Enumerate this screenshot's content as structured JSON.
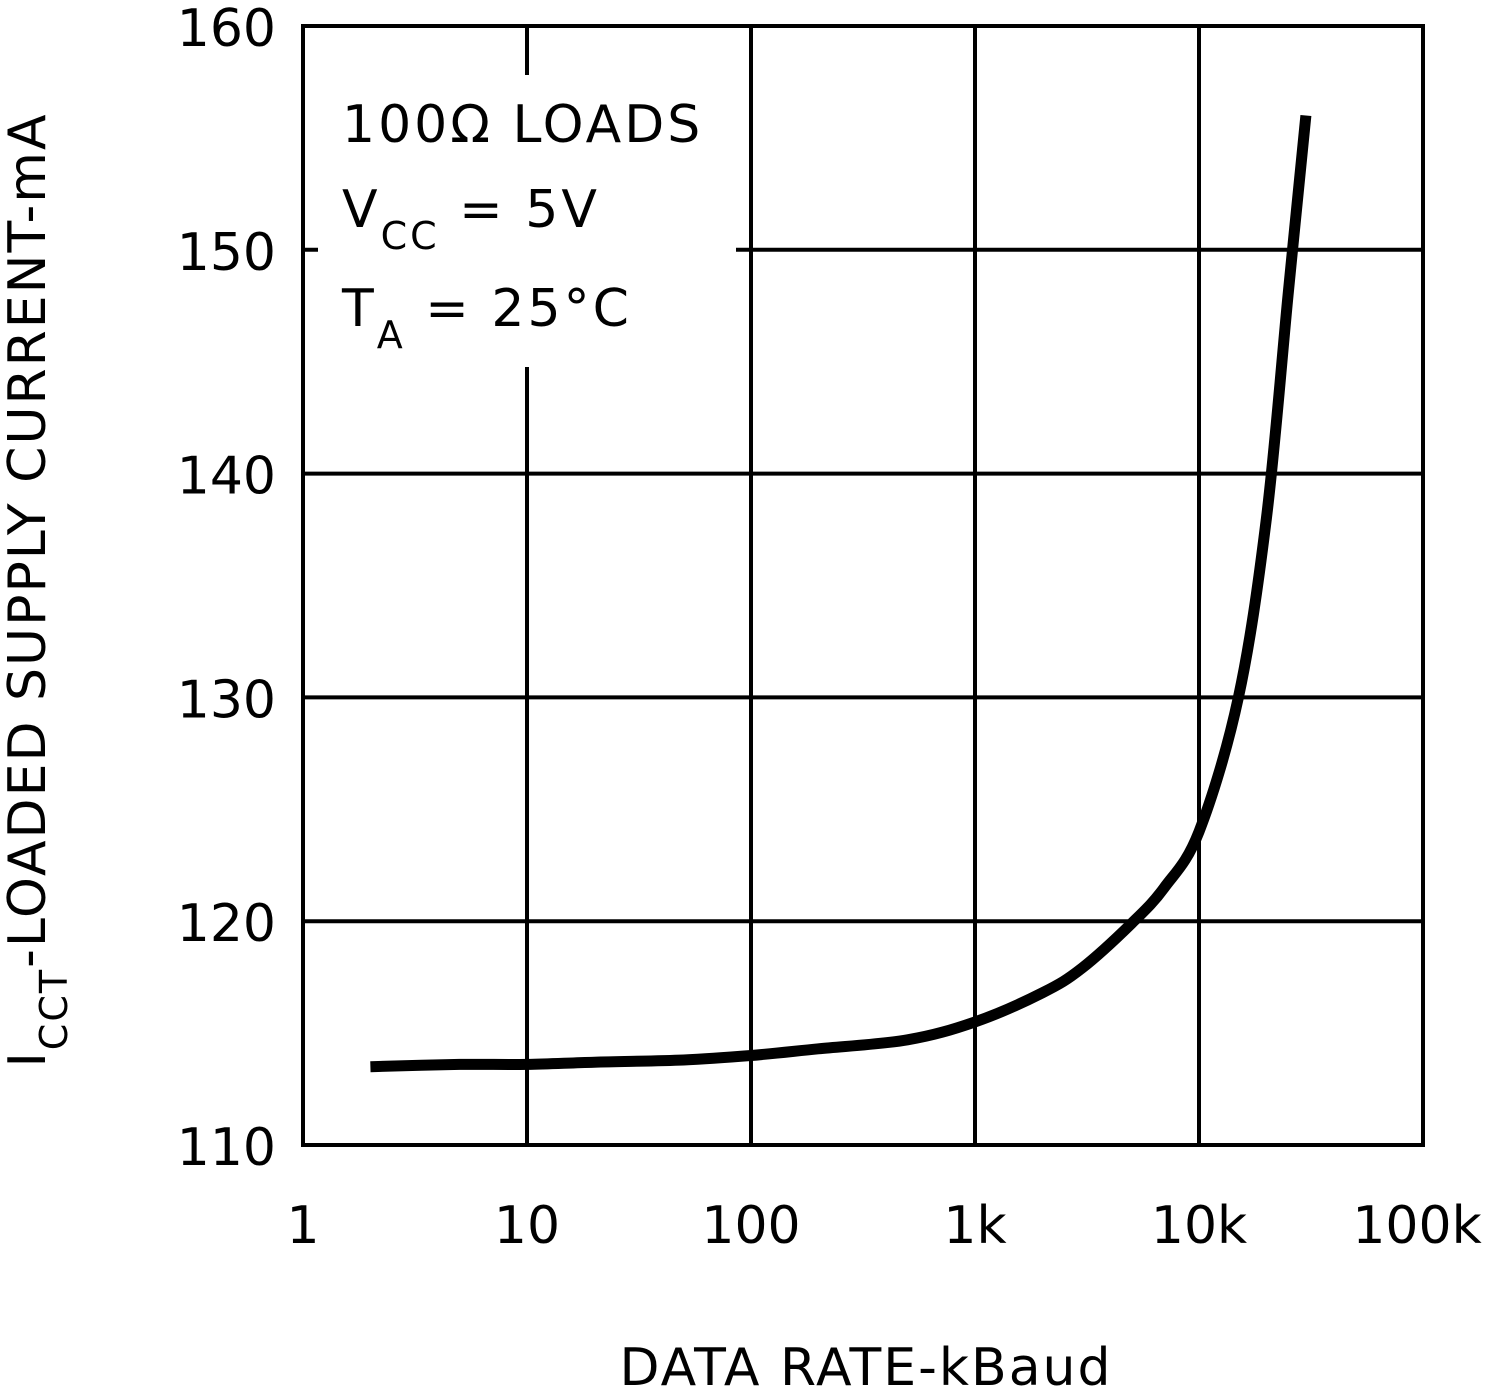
{
  "chart_data": {
    "type": "line",
    "title": "",
    "xlabel": "DATA RATE-kBaud",
    "ylabel": {
      "prefix": "I",
      "subscript": "CCT",
      "text": "-LOADED SUPPLY CURRENT-mA"
    },
    "xscale": "log",
    "xlim": [
      1,
      100000
    ],
    "ylim": [
      110,
      160
    ],
    "xticks": [
      {
        "value": 1,
        "label": "1"
      },
      {
        "value": 10,
        "label": "10"
      },
      {
        "value": 100,
        "label": "100"
      },
      {
        "value": 1000,
        "label": "1k"
      },
      {
        "value": 10000,
        "label": "10k"
      },
      {
        "value": 100000,
        "label": "100k"
      }
    ],
    "yticks": [
      {
        "value": 110,
        "label": "110"
      },
      {
        "value": 120,
        "label": "120"
      },
      {
        "value": 130,
        "label": "130"
      },
      {
        "value": 140,
        "label": "140"
      },
      {
        "value": 150,
        "label": "150"
      },
      {
        "value": 160,
        "label": "160"
      }
    ],
    "grid": true,
    "annotations": [
      {
        "text": "100Ω LOADS"
      },
      {
        "text": "V",
        "subscript": "CC",
        "suffix": " = 5V"
      },
      {
        "text": "T",
        "subscript": "A",
        "suffix": " = 25°C"
      }
    ],
    "series": [
      {
        "name": "ICCT",
        "color": "#000000",
        "x": [
          2,
          5,
          10,
          20,
          50,
          100,
          200,
          500,
          1000,
          2000,
          3000,
          5000,
          7000,
          10000,
          15000,
          20000,
          25000,
          30000
        ],
        "y": [
          113.5,
          113.6,
          113.6,
          113.7,
          113.8,
          114.0,
          114.3,
          114.7,
          115.5,
          116.8,
          117.9,
          119.9,
          121.5,
          124.0,
          130.0,
          138.0,
          148.0,
          156.0
        ]
      }
    ]
  }
}
